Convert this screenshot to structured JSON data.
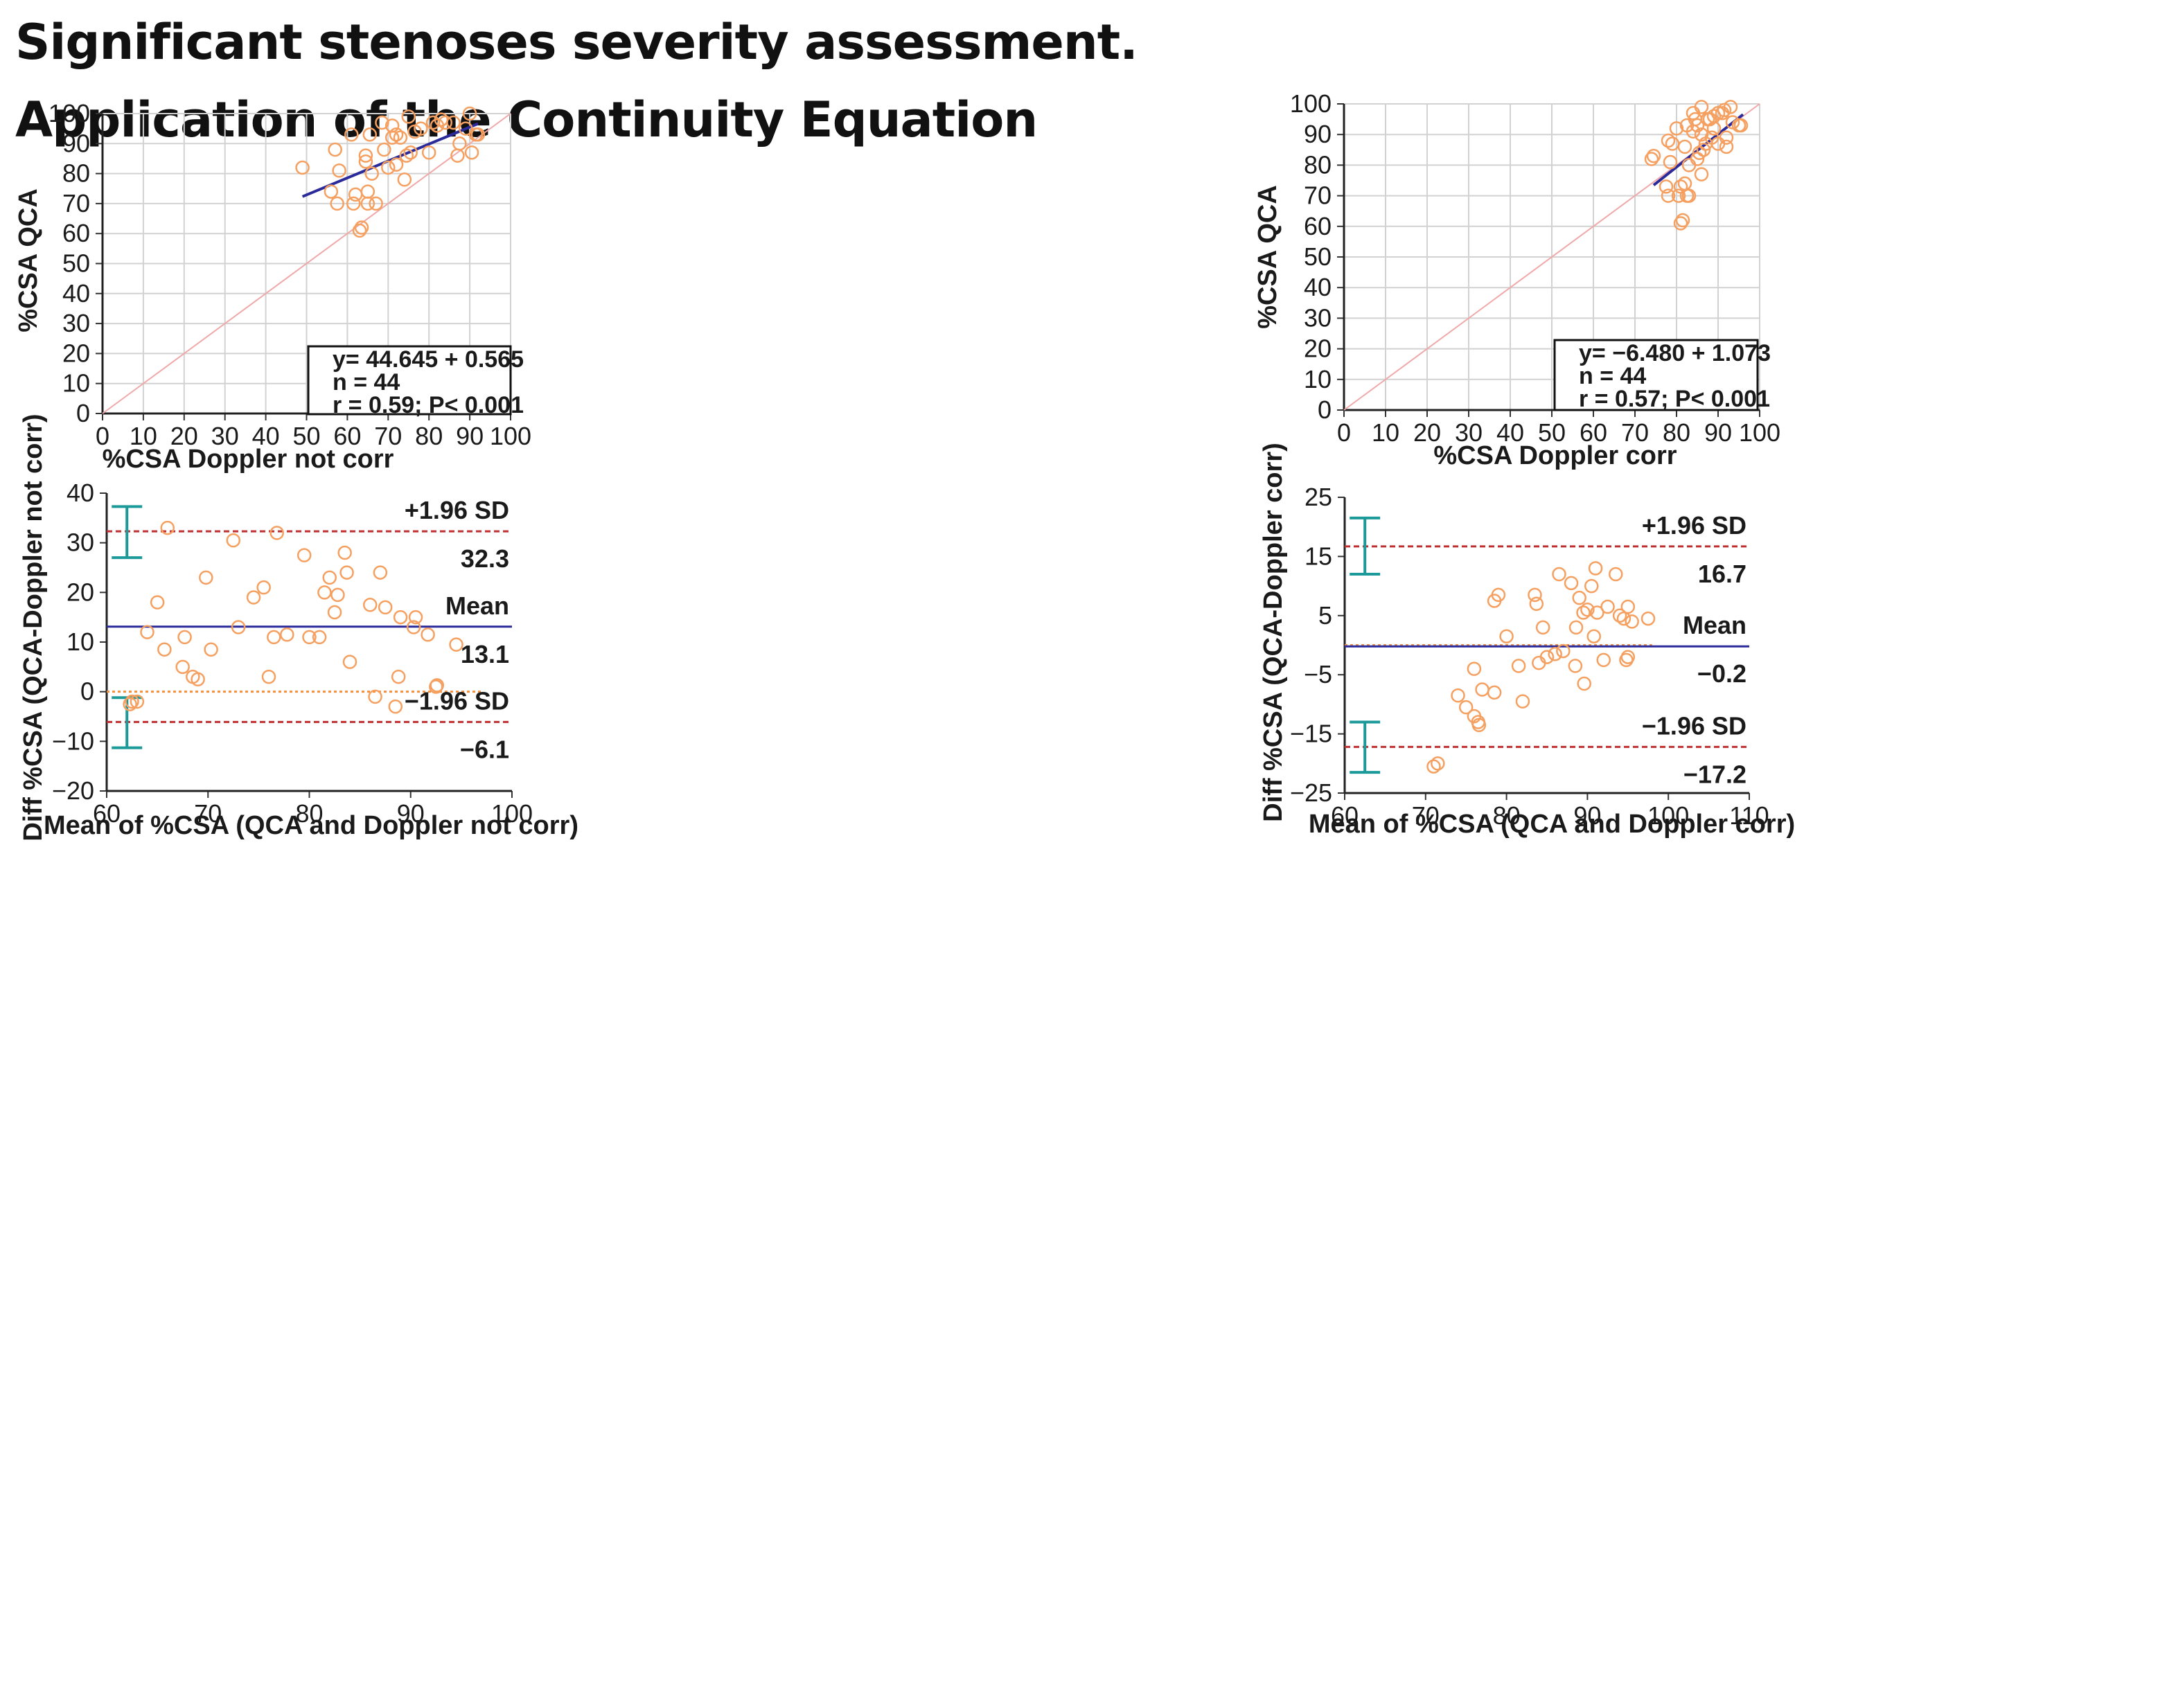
{
  "title_lines": [
    "Significant stenoses severity assessment.",
    "Application of the Continuity Equation"
  ],
  "colors": {
    "points": "#f5a060",
    "regression": "#2a2a9a",
    "identity": "#f0a8a8",
    "grid": "#d2d2d2",
    "limits": "#c03030",
    "ci": "#1c9a9a",
    "zero_line": "#f09040"
  },
  "chart_data": [
    {
      "id": "scatter-not-corr",
      "type": "scatter",
      "xlabel": "%CSA Doppler not corr",
      "ylabel": "%CSA QCA",
      "xlim": [
        0,
        100
      ],
      "ylim": [
        0,
        100
      ],
      "xticks": [
        0,
        10,
        20,
        30,
        40,
        50,
        60,
        70,
        80,
        90,
        100
      ],
      "yticks": [
        0,
        10,
        20,
        30,
        40,
        50,
        60,
        70,
        80,
        90,
        100
      ],
      "regression": {
        "intercept": 44.645,
        "slope": 0.565,
        "x_range": [
          49,
          92
        ]
      },
      "identity_line": true,
      "stats": [
        "y= 44.645 + 0.565",
        "n = 44",
        "r = 0.59; P< 0.001"
      ],
      "points": [
        [
          49,
          82
        ],
        [
          56,
          74
        ],
        [
          57,
          88
        ],
        [
          58,
          81
        ],
        [
          57.5,
          70
        ],
        [
          61,
          93
        ],
        [
          62,
          73
        ],
        [
          61.5,
          70
        ],
        [
          63,
          61
        ],
        [
          63.5,
          62
        ],
        [
          64.5,
          84
        ],
        [
          64.5,
          86
        ],
        [
          65,
          70
        ],
        [
          65.5,
          93
        ],
        [
          66,
          80
        ],
        [
          67,
          70
        ],
        [
          68.5,
          97
        ],
        [
          70,
          82
        ],
        [
          71,
          96
        ],
        [
          71,
          92
        ],
        [
          72,
          93
        ],
        [
          72,
          83
        ],
        [
          73,
          92
        ],
        [
          74,
          78
        ],
        [
          74.5,
          86
        ],
        [
          75,
          99
        ],
        [
          75.5,
          87
        ],
        [
          76.5,
          94
        ],
        [
          78,
          95
        ],
        [
          80,
          87
        ],
        [
          81,
          97
        ],
        [
          82,
          96
        ],
        [
          83,
          98
        ],
        [
          84,
          97
        ],
        [
          86,
          97
        ],
        [
          87,
          86
        ],
        [
          87.5,
          90
        ],
        [
          89,
          95
        ],
        [
          90,
          100
        ],
        [
          90.5,
          87
        ],
        [
          91.5,
          93
        ],
        [
          92,
          93
        ],
        [
          69,
          88
        ],
        [
          65,
          74
        ]
      ]
    },
    {
      "id": "scatter-corr",
      "type": "scatter",
      "xlabel": "%CSA Doppler corr",
      "ylabel": "%CSA QCA",
      "xlim": [
        0,
        100
      ],
      "ylim": [
        0,
        100
      ],
      "xticks": [
        0,
        10,
        20,
        30,
        40,
        50,
        60,
        70,
        80,
        90,
        100
      ],
      "yticks": [
        0,
        10,
        20,
        30,
        40,
        50,
        60,
        70,
        80,
        90,
        100
      ],
      "regression": {
        "intercept": -6.48,
        "slope": 1.073,
        "x_range": [
          74.5,
          96
        ]
      },
      "identity_line": true,
      "stats": [
        "y= −6.480 + 1.073",
        "n = 44",
        "r = 0.57; P< 0.001"
      ],
      "points": [
        [
          74,
          82
        ],
        [
          74.5,
          83
        ],
        [
          77.5,
          73
        ],
        [
          78,
          70
        ],
        [
          78,
          88
        ],
        [
          78.5,
          81
        ],
        [
          79,
          87
        ],
        [
          80,
          92
        ],
        [
          80.5,
          70
        ],
        [
          81,
          73
        ],
        [
          81,
          61
        ],
        [
          81.5,
          62
        ],
        [
          82,
          86
        ],
        [
          82,
          74
        ],
        [
          82.5,
          93
        ],
        [
          82.5,
          70
        ],
        [
          83,
          70
        ],
        [
          83,
          80
        ],
        [
          84,
          97
        ],
        [
          84.5,
          95
        ],
        [
          85,
          93
        ],
        [
          85,
          82
        ],
        [
          85.5,
          84
        ],
        [
          86,
          90
        ],
        [
          86,
          77
        ],
        [
          86,
          99
        ],
        [
          86.5,
          85
        ],
        [
          87,
          87
        ],
        [
          87.5,
          95
        ],
        [
          88,
          95
        ],
        [
          88.5,
          89
        ],
        [
          89,
          92
        ],
        [
          89,
          96
        ],
        [
          90,
          97
        ],
        [
          90,
          87
        ],
        [
          91,
          97
        ],
        [
          91.5,
          98
        ],
        [
          92,
          89
        ],
        [
          92,
          86
        ],
        [
          93,
          99
        ],
        [
          93.5,
          94
        ],
        [
          95,
          93
        ],
        [
          95.5,
          93
        ],
        [
          84,
          91
        ]
      ]
    },
    {
      "id": "bland-altman-not-corr",
      "type": "scatter",
      "xlabel": "Mean of %CSA (QCA and Doppler not corr)",
      "ylabel": "Diff %CSA (QCA-Doppler not corr)",
      "xlim": [
        60,
        100
      ],
      "ylim": [
        -20,
        40
      ],
      "xticks": [
        60,
        70,
        80,
        90,
        100
      ],
      "yticks": [
        -20,
        -10,
        0,
        10,
        20,
        30,
        40
      ],
      "mean_diff": 13.1,
      "upper_loa": 32.3,
      "lower_loa": -6.1,
      "mean_label": "Mean",
      "upper_label": "+1.96 SD",
      "lower_label": "−1.96 SD",
      "mean_value_text": "13.1",
      "upper_value_text": "32.3",
      "lower_value_text": "−6.1",
      "zero_line_x_range": [
        60,
        97
      ],
      "ci_bars": [
        {
          "x": 62,
          "low": 27,
          "high": 37.3
        },
        {
          "x": 62,
          "low": -11.3,
          "high": -1.2
        }
      ],
      "points": [
        [
          62.5,
          -2
        ],
        [
          63,
          -2
        ],
        [
          64,
          12
        ],
        [
          65,
          18
        ],
        [
          65.7,
          8.5
        ],
        [
          66,
          33
        ],
        [
          67.5,
          5
        ],
        [
          67.7,
          11
        ],
        [
          68.5,
          3
        ],
        [
          69,
          2.5
        ],
        [
          69.8,
          23
        ],
        [
          70.3,
          8.5
        ],
        [
          72.5,
          30.5
        ],
        [
          73,
          13
        ],
        [
          74.5,
          19
        ],
        [
          75.5,
          21
        ],
        [
          76,
          3
        ],
        [
          76.5,
          11
        ],
        [
          76.8,
          32
        ],
        [
          77.8,
          11.5
        ],
        [
          79.5,
          27.5
        ],
        [
          80,
          11
        ],
        [
          81,
          11
        ],
        [
          81.5,
          20
        ],
        [
          82,
          23
        ],
        [
          82.5,
          16
        ],
        [
          82.8,
          19.5
        ],
        [
          83.5,
          28
        ],
        [
          83.7,
          24
        ],
        [
          84,
          6
        ],
        [
          86,
          17.5
        ],
        [
          86.5,
          -1
        ],
        [
          87,
          24
        ],
        [
          87.5,
          17
        ],
        [
          88.5,
          -3
        ],
        [
          88.8,
          3
        ],
        [
          89,
          15
        ],
        [
          90.3,
          13
        ],
        [
          90.5,
          15
        ],
        [
          91.7,
          11.5
        ],
        [
          92.5,
          1
        ],
        [
          92.6,
          1.3
        ],
        [
          94.5,
          9.5
        ],
        [
          62.3,
          -2.5
        ]
      ]
    },
    {
      "id": "bland-altman-corr",
      "type": "scatter",
      "xlabel": "Mean of %CSA (QCA and Doppler corr)",
      "ylabel": "Diff %CSA (QCA-Doppler corr)",
      "xlim": [
        60,
        110
      ],
      "ylim": [
        -25,
        25
      ],
      "xticks": [
        60,
        70,
        80,
        90,
        100,
        110
      ],
      "yticks": [
        -25,
        -15,
        -5,
        5,
        15,
        25
      ],
      "mean_diff": -0.2,
      "upper_loa": 16.7,
      "lower_loa": -17.2,
      "mean_label": "Mean",
      "upper_label": "+1.96 SD",
      "lower_label": "−1.96 SD",
      "mean_value_text": "−0.2",
      "upper_value_text": "16.7",
      "lower_value_text": "−17.2",
      "zero_line_x_range": [
        60,
        98
      ],
      "ci_bars": [
        {
          "x": 62.5,
          "low": 12,
          "high": 21.5
        },
        {
          "x": 62.5,
          "low": -21.5,
          "high": -13
        }
      ],
      "points": [
        [
          71,
          -20.5
        ],
        [
          71.5,
          -20
        ],
        [
          74,
          -8.5
        ],
        [
          75,
          -10.5
        ],
        [
          76,
          -12
        ],
        [
          76.5,
          -13
        ],
        [
          76.6,
          -13.5
        ],
        [
          76,
          -4
        ],
        [
          77,
          -7.5
        ],
        [
          78.5,
          -8
        ],
        [
          78.5,
          7.5
        ],
        [
          79,
          8.5
        ],
        [
          80,
          1.5
        ],
        [
          81.5,
          -3.5
        ],
        [
          82,
          -9.5
        ],
        [
          83.5,
          8.5
        ],
        [
          83.7,
          7
        ],
        [
          84,
          -3
        ],
        [
          84.5,
          3
        ],
        [
          85,
          -2
        ],
        [
          86,
          -1.5
        ],
        [
          86.5,
          12
        ],
        [
          87,
          -1
        ],
        [
          88,
          10.5
        ],
        [
          88.5,
          -3.5
        ],
        [
          88.6,
          3
        ],
        [
          89,
          8
        ],
        [
          89.5,
          5.5
        ],
        [
          89.6,
          -6.5
        ],
        [
          90,
          6
        ],
        [
          90.5,
          10
        ],
        [
          90.8,
          1.5
        ],
        [
          91,
          13
        ],
        [
          91.2,
          5.5
        ],
        [
          92,
          -2.5
        ],
        [
          92.5,
          6.5
        ],
        [
          93.5,
          12
        ],
        [
          94,
          5
        ],
        [
          94.5,
          4.5
        ],
        [
          94.8,
          -2.5
        ],
        [
          95,
          -2
        ],
        [
          95,
          6.5
        ],
        [
          95.5,
          4
        ],
        [
          97.5,
          4.5
        ]
      ]
    }
  ]
}
